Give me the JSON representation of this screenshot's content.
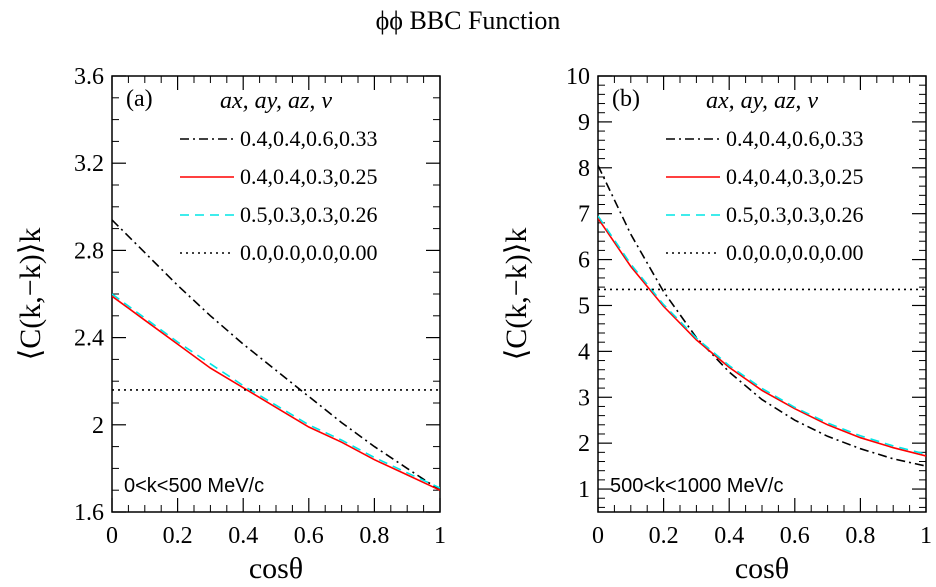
{
  "title": "ϕϕ BBC Function",
  "chart_data": [
    {
      "type": "line",
      "panel_label": "(a)",
      "range_label": "0<k<500 MeV/c",
      "xlabel": "cosθ",
      "ylabel": "⟨C(k,−k)⟩k",
      "xlim": [
        0,
        1
      ],
      "ylim": [
        1.6,
        3.6
      ],
      "x_ticks": [
        "0",
        "0.2",
        "0.4",
        "0.6",
        "0.8",
        "1"
      ],
      "y_ticks": [
        "1.6",
        "2",
        "2.4",
        "2.8",
        "3.2",
        "3.6"
      ],
      "x_tick_values": [
        0,
        0.2,
        0.4,
        0.6,
        0.8,
        1
      ],
      "y_tick_values": [
        1.6,
        2.0,
        2.4,
        2.8,
        3.2,
        3.6
      ],
      "legend_header": "ax, ay, az, v",
      "series": [
        {
          "name": "0.4,0.4,0.6,0.33",
          "color": "#000000",
          "dash": "dashdot",
          "x": [
            0,
            0.1,
            0.2,
            0.3,
            0.4,
            0.5,
            0.6,
            0.7,
            0.8,
            0.9,
            1
          ],
          "y": [
            2.94,
            2.79,
            2.64,
            2.5,
            2.37,
            2.25,
            2.13,
            2.01,
            1.9,
            1.8,
            1.7
          ]
        },
        {
          "name": "0.4,0.4,0.3,0.25",
          "color": "#ff0000",
          "dash": "solid",
          "x": [
            0,
            0.1,
            0.2,
            0.3,
            0.4,
            0.5,
            0.6,
            0.7,
            0.8,
            0.9,
            1
          ],
          "y": [
            2.59,
            2.48,
            2.37,
            2.26,
            2.17,
            2.08,
            1.99,
            1.92,
            1.84,
            1.77,
            1.7
          ]
        },
        {
          "name": "0.5,0.3,0.3,0.26",
          "color": "#00e5e5",
          "dash": "dashed",
          "x": [
            0,
            0.1,
            0.2,
            0.3,
            0.4,
            0.5,
            0.6,
            0.7,
            0.8,
            0.9,
            1
          ],
          "y": [
            2.6,
            2.49,
            2.38,
            2.28,
            2.18,
            2.09,
            2.0,
            1.93,
            1.85,
            1.78,
            1.71
          ]
        },
        {
          "name": "0.0,0.0,0.0,0.00",
          "color": "#000000",
          "dash": "dotted",
          "x": [
            0,
            1
          ],
          "y": [
            2.16,
            2.16
          ]
        }
      ]
    },
    {
      "type": "line",
      "panel_label": "(b)",
      "range_label": "500<k<1000 MeV/c",
      "xlabel": "cosθ",
      "ylabel": "⟨C(k,−k)⟩k",
      "xlim": [
        0,
        1
      ],
      "ylim": [
        0.5,
        10
      ],
      "x_ticks": [
        "0",
        "0.2",
        "0.4",
        "0.6",
        "0.8",
        "1"
      ],
      "y_ticks": [
        "1",
        "2",
        "3",
        "4",
        "5",
        "6",
        "7",
        "8",
        "9",
        "10"
      ],
      "x_tick_values": [
        0,
        0.2,
        0.4,
        0.6,
        0.8,
        1
      ],
      "y_tick_values": [
        1,
        2,
        3,
        4,
        5,
        6,
        7,
        8,
        9,
        10
      ],
      "legend_header": "ax, ay, az, v",
      "series": [
        {
          "name": "0.4,0.4,0.6,0.33",
          "color": "#000000",
          "dash": "dashdot",
          "x": [
            0,
            0.1,
            0.2,
            0.3,
            0.4,
            0.5,
            0.6,
            0.7,
            0.8,
            0.9,
            1
          ],
          "y": [
            8.05,
            6.55,
            5.3,
            4.3,
            3.55,
            2.95,
            2.5,
            2.15,
            1.88,
            1.66,
            1.5
          ]
        },
        {
          "name": "0.4,0.4,0.3,0.25",
          "color": "#ff0000",
          "dash": "solid",
          "x": [
            0,
            0.1,
            0.2,
            0.3,
            0.4,
            0.5,
            0.6,
            0.7,
            0.8,
            0.9,
            1
          ],
          "y": [
            6.9,
            5.85,
            4.98,
            4.25,
            3.65,
            3.15,
            2.75,
            2.4,
            2.12,
            1.9,
            1.72
          ]
        },
        {
          "name": "0.5,0.3,0.3,0.26",
          "color": "#00e5e5",
          "dash": "dashed",
          "x": [
            0,
            0.1,
            0.2,
            0.3,
            0.4,
            0.5,
            0.6,
            0.7,
            0.8,
            0.9,
            1
          ],
          "y": [
            6.95,
            5.9,
            5.02,
            4.29,
            3.69,
            3.19,
            2.78,
            2.44,
            2.16,
            1.94,
            1.76
          ]
        },
        {
          "name": "0.0,0.0,0.0,0.00",
          "color": "#000000",
          "dash": "dotted",
          "x": [
            0,
            1
          ],
          "y": [
            5.35,
            5.35
          ]
        }
      ]
    }
  ]
}
